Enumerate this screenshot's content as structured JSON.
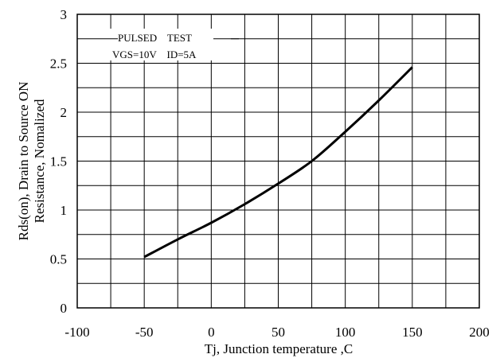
{
  "chart_data": {
    "type": "line",
    "title": "",
    "xlabel": "Tj, Junction temperature ,C",
    "ylabel_lines": [
      "Rds(on), Drain to Source ON",
      "Resistance, Nomalized"
    ],
    "xlim": [
      -100,
      200
    ],
    "ylim": [
      0,
      3
    ],
    "x_ticks": [
      -100,
      -50,
      0,
      50,
      100,
      150,
      200
    ],
    "y_ticks": [
      0,
      0.5,
      1,
      1.5,
      2,
      2.5,
      3
    ],
    "x_tick_labels": [
      "-100",
      "-50",
      "0",
      "50",
      "100",
      "150",
      "200"
    ],
    "y_tick_labels": [
      "0",
      "0.5",
      "1",
      "1.5",
      "2",
      "2.5",
      "3"
    ],
    "x_grid_step": 25,
    "y_grid_step": 0.25,
    "grid": true,
    "legend": "none",
    "annotations": [
      "PULSED    TEST",
      "VGS=10V    ID=5A"
    ],
    "series": [
      {
        "x": [
          -50,
          -25,
          0,
          25,
          50,
          75,
          100,
          125,
          150
        ],
        "y": [
          0.52,
          0.7,
          0.87,
          1.06,
          1.27,
          1.5,
          1.8,
          2.12,
          2.46
        ]
      }
    ]
  }
}
